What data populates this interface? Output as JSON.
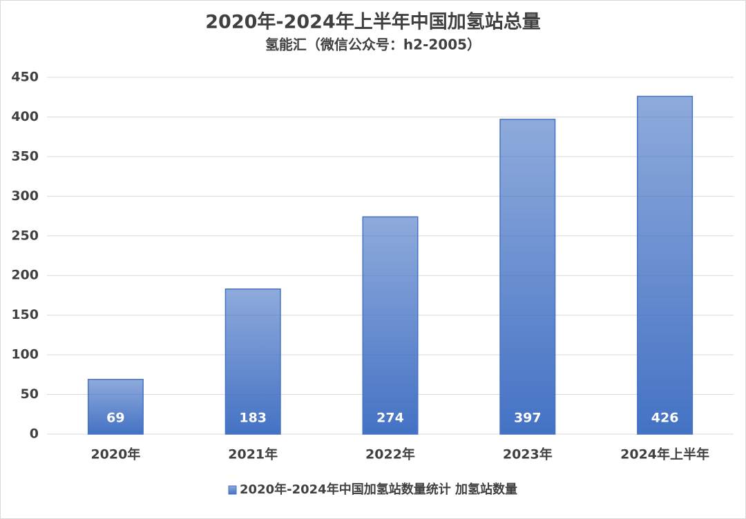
{
  "chart_data": {
    "type": "bar",
    "title": "2020年-2024年上半年中国加氢站总量",
    "subtitle": "氢能汇（微信公众号：h2-2005）",
    "categories": [
      "2020年",
      "2021年",
      "2022年",
      "2023年",
      "2024年上半年"
    ],
    "series": [
      {
        "name": "2020年-2024年中国加氢站数量统计 加氢站数量",
        "color": "#4472c4",
        "values": [
          69,
          183,
          274,
          397,
          426
        ]
      }
    ],
    "ylim": [
      0,
      450
    ],
    "yticks": [
      0,
      50,
      100,
      150,
      200,
      250,
      300,
      350,
      400,
      450
    ],
    "grid": true,
    "legend": "bottom",
    "data_labels": true
  }
}
